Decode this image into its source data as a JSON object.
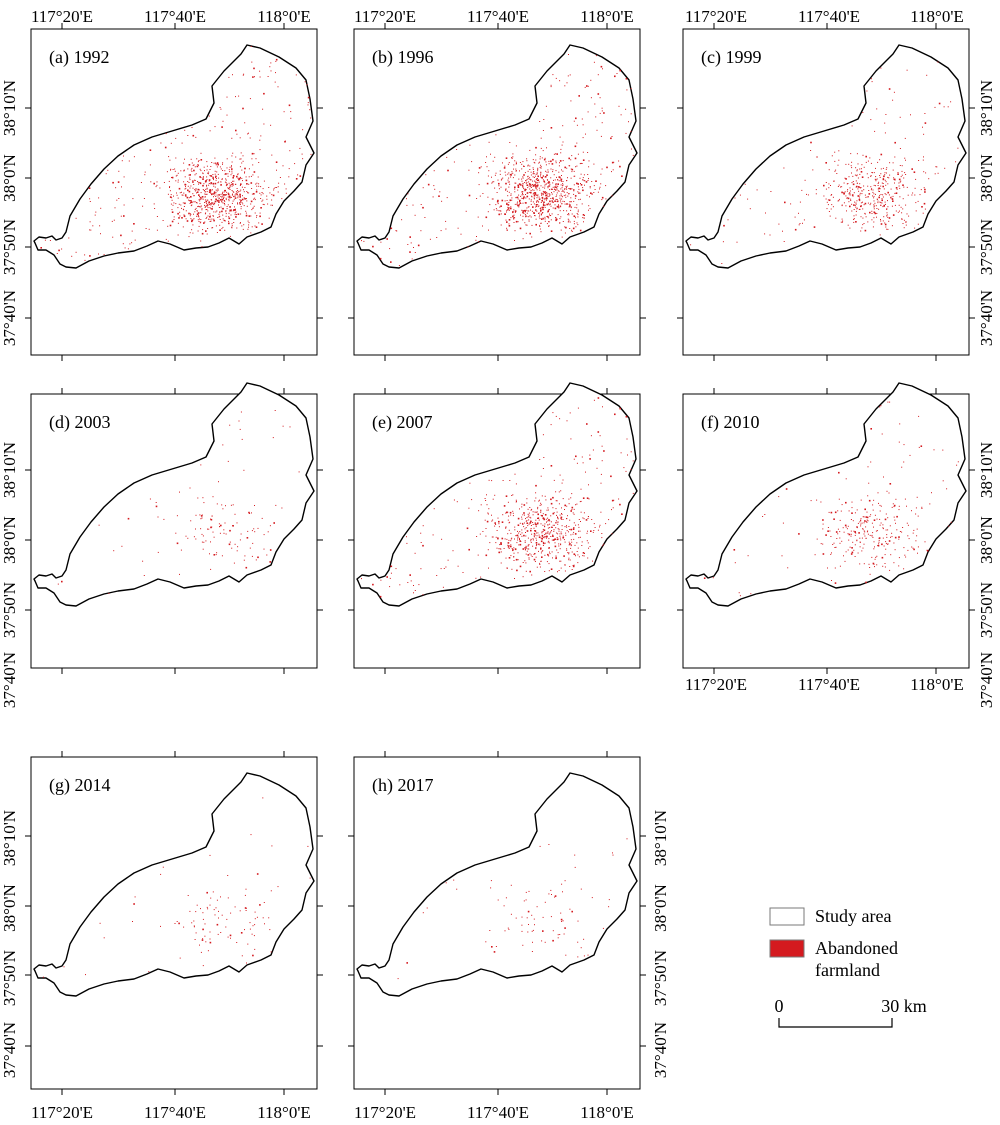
{
  "figure": {
    "panels": [
      {
        "label": "(a) 1992",
        "density": 1.0,
        "show_top": true,
        "show_bottom": false,
        "show_left": true,
        "show_right": true
      },
      {
        "label": "(b) 1996",
        "density": 1.1,
        "show_top": true,
        "show_bottom": false,
        "show_left": false,
        "show_right": false
      },
      {
        "label": "(c) 1999",
        "density": 0.55,
        "show_top": true,
        "show_bottom": false,
        "show_left": false,
        "show_right": true
      },
      {
        "label": "(d) 2003",
        "density": 0.15,
        "show_top": false,
        "show_bottom": false,
        "show_left": true,
        "show_right": true
      },
      {
        "label": "(e) 2007",
        "density": 0.8,
        "show_top": false,
        "show_bottom": false,
        "show_left": false,
        "show_right": false
      },
      {
        "label": "(f) 2010",
        "density": 0.35,
        "show_top": false,
        "show_bottom": true,
        "show_left": false,
        "show_right": true
      },
      {
        "label": "(g) 2014",
        "density": 0.12,
        "show_top": false,
        "show_bottom": true,
        "show_left": true,
        "show_right": true
      },
      {
        "label": "(h) 2017",
        "density": 0.1,
        "show_top": false,
        "show_bottom": true,
        "show_left": false,
        "show_right": true
      }
    ],
    "x_ticks": [
      "117°20'E",
      "117°40'E",
      "118°0'E"
    ],
    "y_ticks": [
      "38°10'N",
      "38°0'N",
      "37°50'N",
      "37°40'N"
    ],
    "legend": {
      "study_area": "Study area",
      "abandoned_line1": "Abandoned",
      "abandoned_line2": "farmland",
      "scale_start": "0",
      "scale_end": "30 km"
    },
    "colors": {
      "abandoned": "#d41a1f",
      "study_area_fill": "#ffffff",
      "outline": "#000000"
    }
  }
}
